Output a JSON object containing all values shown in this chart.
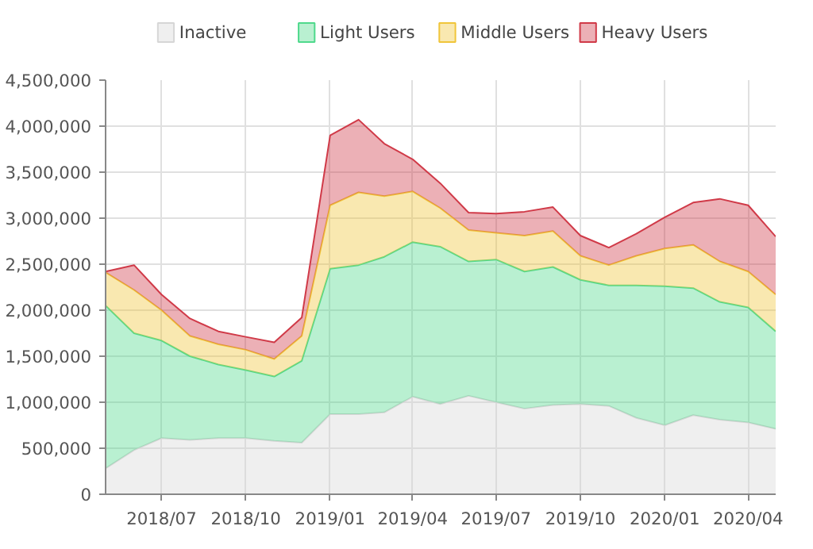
{
  "chart_data": {
    "type": "area",
    "stacked": true,
    "x": [
      "2018-05",
      "2018-06",
      "2018-07",
      "2018-08",
      "2018-09",
      "2018-10",
      "2018-11",
      "2018-12",
      "2019-01",
      "2019-02",
      "2019-03",
      "2019-04",
      "2019-05",
      "2019-06",
      "2019-07",
      "2019-08",
      "2019-09",
      "2019-10",
      "2019-11",
      "2019-12",
      "2020-01",
      "2020-02",
      "2020-03",
      "2020-04",
      "2020-05"
    ],
    "series": [
      {
        "name": "Inactive",
        "color": "#d6d6d6",
        "values": [
          280000,
          480000,
          610000,
          590000,
          610000,
          610000,
          580000,
          560000,
          870000,
          870000,
          890000,
          1060000,
          980000,
          1070000,
          1000000,
          930000,
          970000,
          980000,
          960000,
          830000,
          750000,
          860000,
          810000,
          780000,
          710000
        ]
      },
      {
        "name": "Light Users",
        "color": "#4fd98c",
        "values": [
          1770000,
          1270000,
          1060000,
          910000,
          800000,
          740000,
          700000,
          890000,
          1580000,
          1620000,
          1690000,
          1680000,
          1710000,
          1460000,
          1550000,
          1490000,
          1500000,
          1350000,
          1310000,
          1440000,
          1510000,
          1380000,
          1280000,
          1250000,
          1060000
        ]
      },
      {
        "name": "Middle Users",
        "color": "#f0c53a",
        "values": [
          360000,
          470000,
          330000,
          220000,
          220000,
          220000,
          190000,
          270000,
          690000,
          790000,
          660000,
          550000,
          420000,
          340000,
          290000,
          390000,
          390000,
          260000,
          220000,
          320000,
          410000,
          470000,
          440000,
          390000,
          400000
        ]
      },
      {
        "name": "Heavy Users",
        "color": "#d03a48",
        "values": [
          10000,
          270000,
          170000,
          190000,
          140000,
          140000,
          180000,
          200000,
          760000,
          790000,
          570000,
          350000,
          270000,
          190000,
          210000,
          260000,
          260000,
          220000,
          190000,
          240000,
          340000,
          460000,
          680000,
          720000,
          630000
        ]
      }
    ],
    "xlim": [
      "2018-05",
      "2020-05"
    ],
    "xticks": [
      {
        "value": "2018-07",
        "label": "2018/07"
      },
      {
        "value": "2018-10",
        "label": "2018/10"
      },
      {
        "value": "2019-01",
        "label": "2019/01"
      },
      {
        "value": "2019-04",
        "label": "2019/04"
      },
      {
        "value": "2019-07",
        "label": "2019/07"
      },
      {
        "value": "2019-10",
        "label": "2019/10"
      },
      {
        "value": "2020-01",
        "label": "2020/01"
      },
      {
        "value": "2020-04",
        "label": "2020/04"
      }
    ],
    "ylim": [
      0,
      4500000
    ],
    "yticks": [
      {
        "value": 0,
        "label": "0"
      },
      {
        "value": 500000,
        "label": "500,000"
      },
      {
        "value": 1000000,
        "label": "1,000,000"
      },
      {
        "value": 1500000,
        "label": "1,500,000"
      },
      {
        "value": 2000000,
        "label": "2,000,000"
      },
      {
        "value": 2500000,
        "label": "2,500,000"
      },
      {
        "value": 3000000,
        "label": "3,000,000"
      },
      {
        "value": 3500000,
        "label": "3,500,000"
      },
      {
        "value": 4000000,
        "label": "4,000,000"
      },
      {
        "value": 4500000,
        "label": "4,500,000"
      }
    ],
    "grid": true,
    "legend": "top left"
  }
}
